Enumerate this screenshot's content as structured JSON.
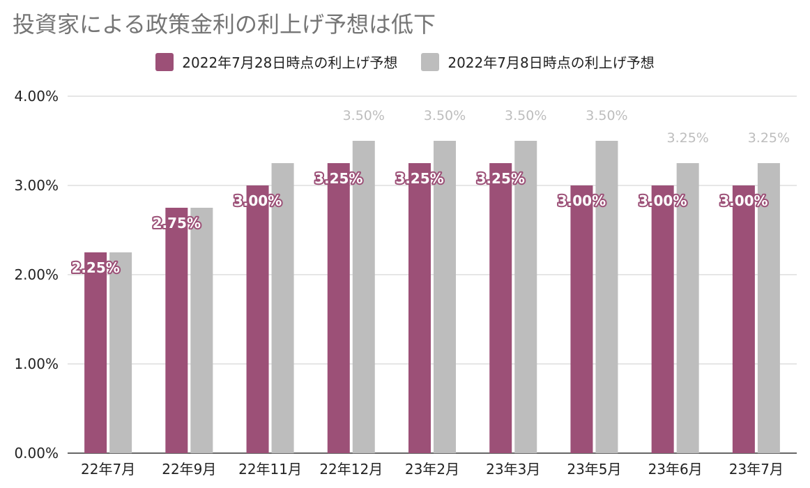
{
  "chart_data": {
    "type": "bar",
    "title": "投資家による政策金利の利上げ予想は低下",
    "categories": [
      "22年7月",
      "22年9月",
      "22年11月",
      "22年12月",
      "23年2月",
      "23年3月",
      "23年5月",
      "23年6月",
      "23年7月"
    ],
    "series": [
      {
        "name": "2022年7月28日時点の利上げ予想",
        "color": "#9c5077",
        "values": [
          2.25,
          2.75,
          3.0,
          3.25,
          3.25,
          3.25,
          3.0,
          3.0,
          3.0
        ],
        "labels": [
          "2.25%",
          "2.75%",
          "3.00%",
          "3.25%",
          "3.25%",
          "3.25%",
          "3.00%",
          "3.00%",
          "3.00%"
        ]
      },
      {
        "name": "2022年7月8日時点の利上げ予想",
        "color": "#bdbdbd",
        "values": [
          2.25,
          2.75,
          3.25,
          3.5,
          3.5,
          3.5,
          3.5,
          3.25,
          3.25
        ],
        "labels": [
          "",
          "",
          "",
          "3.50%",
          "3.50%",
          "3.50%",
          "3.50%",
          "3.25%",
          "3.25%"
        ]
      }
    ],
    "ylim": [
      0,
      4
    ],
    "yticks": [
      0,
      1,
      2,
      3,
      4
    ],
    "ytick_labels": [
      "0.00%",
      "1.00%",
      "2.00%",
      "3.00%",
      "4.00%"
    ],
    "xlabel": "",
    "ylabel": "",
    "grid": true,
    "legend_position": "top"
  }
}
